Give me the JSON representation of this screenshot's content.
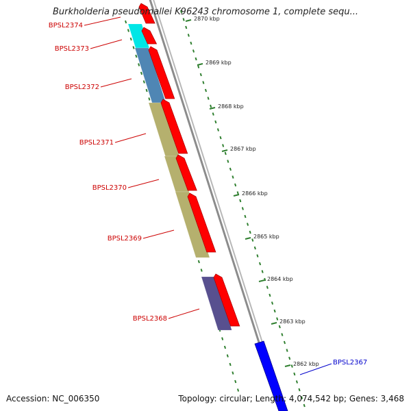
{
  "title": "Burkholderia pseudomallei K96243 chromosome 1, complete sequ...",
  "accession": "Accession: NC_006350",
  "topology": "Topology: circular; Length: 4,074,542 bp; Genes: 3,468",
  "colors": {
    "forward_gene": "#ff0000",
    "selected_gene": "#0000ff",
    "backbone": "#8c8c8c",
    "scale_ticks": "#2f7f2f",
    "label_red": "#cc0000",
    "label_blue": "#0000cc"
  },
  "scale": {
    "unit": "kbp",
    "ticks": [
      {
        "label": "2870 kbp"
      },
      {
        "label": "2869 kbp"
      },
      {
        "label": "2868 kbp"
      },
      {
        "label": "2867 kbp"
      },
      {
        "label": "2866 kbp"
      },
      {
        "label": "2865 kbp"
      },
      {
        "label": "2864 kbp"
      },
      {
        "label": "2863 kbp"
      },
      {
        "label": "2862 kbp"
      }
    ]
  },
  "cog_blocks": [
    {
      "color": "#00e6e6"
    },
    {
      "color": "#4f86b4"
    },
    {
      "color": "#b5b06e"
    },
    {
      "color": "#b5b06e"
    },
    {
      "color": "#b5b06e"
    },
    {
      "color": "#58508f"
    }
  ],
  "genes": [
    {
      "label": "BPSL2374"
    },
    {
      "label": "BPSL2373"
    },
    {
      "label": "BPSL2372"
    },
    {
      "label": "BPSL2371"
    },
    {
      "label": "BPSL2370"
    },
    {
      "label": "BPSL2369"
    },
    {
      "label": "BPSL2368"
    },
    {
      "label": "BPSL2367"
    }
  ]
}
